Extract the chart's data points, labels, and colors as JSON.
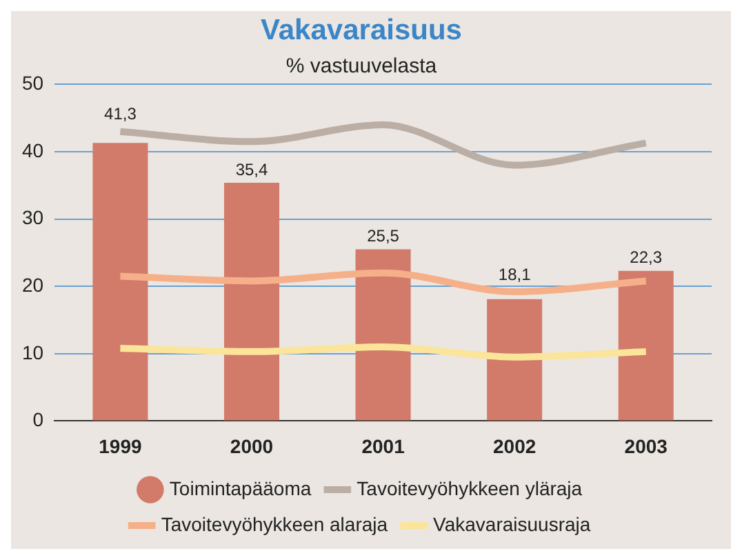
{
  "chart_data": {
    "type": "bar",
    "title": "Vakavaraisuus",
    "subtitle": "% vastuuvelasta",
    "categories": [
      "1999",
      "2000",
      "2001",
      "2002",
      "2003"
    ],
    "series": [
      {
        "name": "Toimintapääoma",
        "color": "#d27b6a",
        "values": [
          41.3,
          35.4,
          25.5,
          18.1,
          22.3
        ],
        "value_labels": [
          "41,3",
          "35,4",
          "25,5",
          "18,1",
          "22,3"
        ]
      },
      {
        "name": "Tavoitevyöhykkeen yläraja",
        "type": "line",
        "color": "#bbaea5",
        "values": [
          43,
          41.5,
          44,
          38,
          41.3
        ]
      },
      {
        "name": "Tavoitevyöhykkeen alaraja",
        "type": "line",
        "color": "#f5b08a",
        "values": [
          21.5,
          20.8,
          22,
          19.2,
          20.8
        ]
      },
      {
        "name": "Vakavaraisuusraja",
        "type": "line",
        "color": "#fbe59a",
        "values": [
          10.8,
          10.3,
          11,
          9.5,
          10.3
        ]
      }
    ],
    "ylim": [
      0,
      50
    ],
    "yticks": [
      0,
      10,
      20,
      30,
      40,
      50
    ],
    "grid": "y",
    "legend": "bottom",
    "marker": "none",
    "line_style": "solid"
  }
}
